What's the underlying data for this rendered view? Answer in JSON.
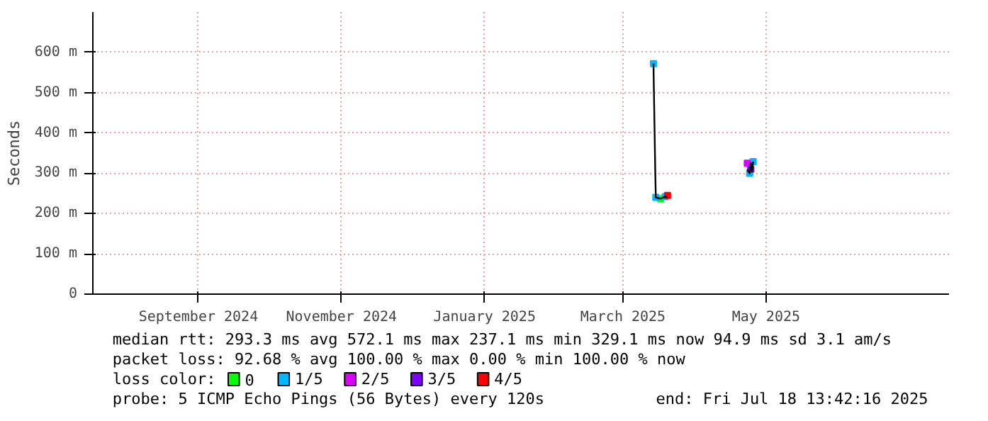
{
  "chart_data": {
    "type": "line",
    "ylabel": "Seconds",
    "xlim": [
      "2024-07-18",
      "2025-07-18"
    ],
    "xticks": [
      {
        "value": "2024-09-01",
        "label": "September 2024"
      },
      {
        "value": "2024-11-01",
        "label": "November 2024"
      },
      {
        "value": "2025-01-01",
        "label": "January 2025"
      },
      {
        "value": "2025-03-01",
        "label": "March 2025"
      },
      {
        "value": "2025-05-01",
        "label": "May 2025"
      }
    ],
    "ylim": [
      0,
      700
    ],
    "yticks": [
      0,
      {
        "value": 100,
        "label": "100 m"
      },
      {
        "value": 200,
        "label": "200 m"
      },
      {
        "value": 300,
        "label": "300 m"
      },
      {
        "value": 400,
        "label": "400 m"
      },
      {
        "value": 500,
        "label": "500 m"
      },
      {
        "value": 600,
        "label": "600 m"
      }
    ],
    "grid": true,
    "legend": "bottom",
    "legend_title": "loss color:",
    "series": [
      {
        "color": "#000000",
        "x": [
          "2025-03-14",
          "2025-03-14T18:00",
          "2025-03-15",
          "2025-03-17",
          "2025-03-19",
          "2025-03-20",
          "2025-04-01",
          "2025-04-23",
          "2025-04-24",
          "2025-04-24T12:00",
          "2025-04-25",
          "2025-04-25T12:00"
        ],
        "values": [
          572,
          310,
          240,
          237,
          242,
          240,
          null,
          310,
          300,
          325,
          305,
          329
        ]
      },
      {
        "type": "scatter",
        "name": "0",
        "color": "#00ff00",
        "x": [
          "2025-03-17"
        ],
        "values": [
          237
        ]
      },
      {
        "type": "scatter",
        "name": "1/5",
        "color": "#00b8ff",
        "x": [
          "2025-03-14",
          "2025-03-15",
          "2025-03-19",
          "2025-04-24",
          "2025-04-25T12:00"
        ],
        "values": [
          572,
          240,
          242,
          300,
          329
        ]
      },
      {
        "type": "scatter",
        "name": "2/5",
        "color": "#dd00ff",
        "x": [
          "2025-04-23"
        ],
        "values": [
          325
        ]
      },
      {
        "type": "scatter",
        "name": "3/5",
        "color": "#7e00ff",
        "x": [
          "2025-04-24T12:00"
        ],
        "values": [
          310
        ]
      },
      {
        "type": "scatter",
        "name": "4/5",
        "color": "#ff0000",
        "x": [
          "2025-03-20"
        ],
        "values": [
          245
        ]
      }
    ],
    "annotations": [
      "median rtt:  293.3 ms avg  572.1 ms max  237.1 ms min  329.1 ms now  94.9 ms sd  3.1   am/s",
      "packet loss: 92.68 % avg  100.00 % max  0.00 % min  100.00 % now",
      "probe:       5 ICMP Echo Pings (56 Bytes) every 120s",
      "end: Fri Jul 18 13:42:16 2025"
    ]
  }
}
